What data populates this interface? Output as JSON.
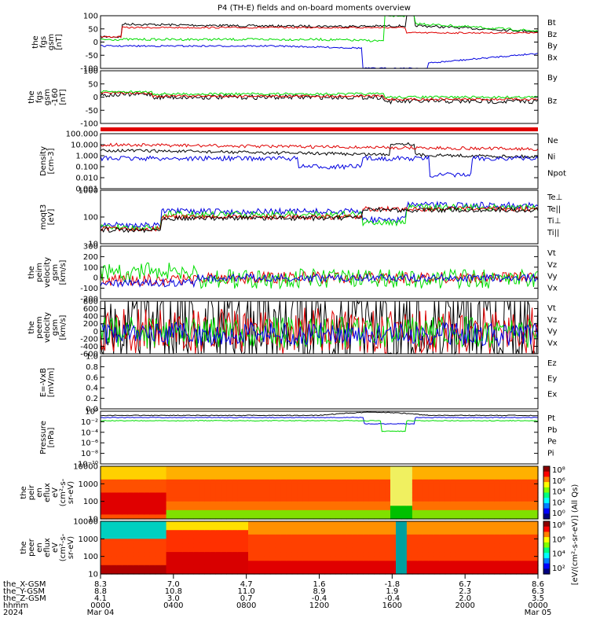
{
  "title": "P4 (TH-E) fields and on-board moments overview",
  "colors": {
    "black": "#000000",
    "red": "#e00000",
    "green": "#00dd00",
    "blue": "#0000e0"
  },
  "chart_data": [
    {
      "type": "line",
      "id": "p1",
      "ylabel": [
        "the",
        "fgs",
        "gsm",
        "[nT]"
      ],
      "ylim": [
        -100,
        100
      ],
      "ticks": [
        "100",
        "50",
        "0",
        "-50",
        "-100"
      ],
      "legend": [
        {
          "label": "Bt",
          "color": "black"
        },
        {
          "label": "Bz",
          "color": "red"
        },
        {
          "label": "By",
          "color": "green"
        },
        {
          "label": "Bx",
          "color": "blue"
        }
      ]
    },
    {
      "type": "line",
      "id": "p2",
      "ylabel": [
        "the",
        "fgs",
        "gsm",
        "-160",
        "[nT]"
      ],
      "ylim": [
        -125,
        125
      ],
      "ticks": [
        "100",
        "50",
        "0",
        "-50",
        "-100"
      ],
      "legend": [
        {
          "label": "By",
          "color": "green"
        },
        {
          "label": "Bz",
          "color": "red"
        }
      ]
    },
    {
      "type": "line",
      "id": "p3",
      "ylabel": [
        "Density",
        "[cm-3]"
      ],
      "log": true,
      "ticks": [
        "100.000",
        "10.000",
        "1.000",
        "0.100",
        "0.010",
        "0.001"
      ],
      "legend": [
        {
          "label": "Ne",
          "color": "red"
        },
        {
          "label": "Ni",
          "color": "black"
        },
        {
          "label": "Npot",
          "color": "blue"
        }
      ]
    },
    {
      "type": "line",
      "id": "p4",
      "ylabel": [
        "moqt3",
        "[eV]"
      ],
      "log": true,
      "ticks": [
        "1000",
        "100",
        "10"
      ],
      "legend": [
        {
          "label": "Te⊥",
          "color": "red"
        },
        {
          "label": "Te||",
          "color": "black"
        },
        {
          "label": "Ti⊥",
          "color": "blue"
        },
        {
          "label": "Ti||",
          "color": "green"
        }
      ]
    },
    {
      "type": "line",
      "id": "p5",
      "ylabel": [
        "the",
        "peim",
        "velocity",
        "gsm",
        "[km/s]"
      ],
      "ylim": [
        -200,
        300
      ],
      "ticks": [
        "300",
        "200",
        "100",
        "0",
        "-100",
        "-200"
      ],
      "legend": [
        {
          "label": "Vt",
          "color": "black"
        },
        {
          "label": "Vz",
          "color": "red"
        },
        {
          "label": "Vy",
          "color": "green"
        },
        {
          "label": "Vx",
          "color": "blue"
        }
      ]
    },
    {
      "type": "line",
      "id": "p6",
      "ylabel": [
        "the",
        "peem",
        "velocity",
        "gsm",
        "[km/s]"
      ],
      "ylim": [
        -600,
        800
      ],
      "ticks": [
        "800",
        "600",
        "400",
        "200",
        "0",
        "-200",
        "-400",
        "-600"
      ],
      "legend": [
        {
          "label": "Vt",
          "color": "black"
        },
        {
          "label": "Vz",
          "color": "red"
        },
        {
          "label": "Vy",
          "color": "green"
        },
        {
          "label": "Vx",
          "color": "blue"
        }
      ]
    },
    {
      "type": "line",
      "id": "p7",
      "ylabel": [
        "E=-VxB",
        "[mV/m]"
      ],
      "ylim": [
        0,
        1
      ],
      "ticks": [
        "1.0",
        "0.8",
        "0.6",
        "0.4",
        "0.2",
        "0.0"
      ],
      "legend": [
        {
          "label": "Ez",
          "color": "red"
        },
        {
          "label": "Ey",
          "color": "green"
        },
        {
          "label": "Ex",
          "color": "blue"
        }
      ]
    },
    {
      "type": "line",
      "id": "p8",
      "ylabel": [
        "Pressure",
        "[nPa]"
      ],
      "log": true,
      "ticks": [
        "10⁰",
        "10⁻²",
        "10⁻⁴",
        "10⁻⁶",
        "10⁻⁸",
        "10⁻¹⁰"
      ],
      "legend": [
        {
          "label": "Pt",
          "color": "black"
        },
        {
          "label": "Pb",
          "color": "red"
        },
        {
          "label": "Pe",
          "color": "green"
        },
        {
          "label": "Pi",
          "color": "blue"
        }
      ]
    },
    {
      "type": "heatmap",
      "id": "p9",
      "ylabel": [
        "the",
        "peir",
        "en",
        "eflux",
        "eV",
        "(cm²-s-",
        "sr-eV)"
      ],
      "ticks": [
        "10000",
        "1000",
        "100",
        "10"
      ]
    },
    {
      "type": "heatmap",
      "id": "p10",
      "ylabel": [
        "the",
        "peer",
        "en",
        "eflux",
        "eV",
        "(cm²-s-",
        "sr-eV)"
      ],
      "ticks": [
        "10000",
        "1000",
        "100",
        "10"
      ]
    }
  ],
  "colorbar": {
    "label": "[eV/(cm²-s-sr-eV)] (All Qs)",
    "ticks": [
      "10⁸",
      "10⁶",
      "10⁴",
      "10²",
      "10⁰"
    ],
    "ticks2": [
      "10⁸",
      "10⁶",
      "10⁴",
      "10²"
    ]
  },
  "xaxis": {
    "rows": [
      {
        "label": "the_X-GSM",
        "values": [
          "8.3",
          "7.0",
          "4.7",
          "1.6",
          "-1.8",
          "6.7",
          "8.6"
        ]
      },
      {
        "label": "the_Y-GSM",
        "values": [
          "8.8",
          "10.8",
          "11.0",
          "8.9",
          "1.9",
          "2.3",
          "6.3"
        ]
      },
      {
        "label": "the_Z-GSM",
        "values": [
          "4.1",
          "3.0",
          "0.7",
          "-0.4",
          "-0.4",
          "2.0",
          "3.5"
        ]
      },
      {
        "label": "hhmm",
        "values": [
          "0000",
          "0400",
          "0800",
          "1200",
          "1600",
          "2000",
          "0000"
        ]
      },
      {
        "label": "2024",
        "values": [
          "Mar 04",
          "",
          "",
          "",
          "",
          "",
          "Mar 05"
        ]
      }
    ]
  }
}
